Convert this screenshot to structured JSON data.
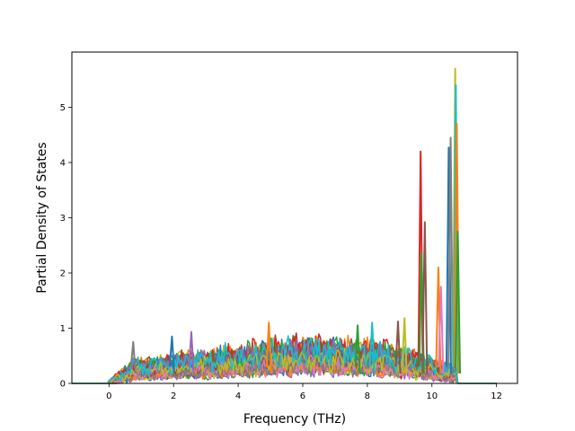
{
  "chart_data": {
    "type": "line",
    "xlabel": "Frequency (THz)",
    "ylabel": "Partial Density of States",
    "xlim": [
      -1.15,
      12.65
    ],
    "ylim": [
      0,
      6.0
    ],
    "x_ticks": [
      0,
      2,
      4,
      6,
      8,
      10,
      12
    ],
    "y_ticks": [
      0,
      1,
      2,
      3,
      4,
      5
    ],
    "grid": false,
    "legend": "none",
    "series_colors": [
      "#1f77b4",
      "#ff7f0e",
      "#2ca02c",
      "#d62728",
      "#9467bd",
      "#8c564b",
      "#e377c2",
      "#7f7f7f",
      "#bcbd22",
      "#17becf"
    ],
    "series_count": 40,
    "curve_domain": [
      -1.15,
      12.0
    ],
    "nonzero_range": [
      0.0,
      10.8
    ],
    "peaks": [
      {
        "x": 0.75,
        "y": 0.75,
        "color": "#7f7f7f"
      },
      {
        "x": 1.95,
        "y": 0.85,
        "color": "#1f77b4"
      },
      {
        "x": 2.55,
        "y": 0.93,
        "color": "#9467bd"
      },
      {
        "x": 4.95,
        "y": 1.1,
        "color": "#ff7f0e"
      },
      {
        "x": 7.7,
        "y": 1.05,
        "color": "#2ca02c"
      },
      {
        "x": 8.15,
        "y": 1.1,
        "color": "#17becf"
      },
      {
        "x": 8.95,
        "y": 1.12,
        "color": "#8c564b"
      },
      {
        "x": 9.15,
        "y": 1.18,
        "color": "#bcbd22"
      },
      {
        "x": 9.65,
        "y": 4.2,
        "color": "#d62728"
      },
      {
        "x": 9.68,
        "y": 2.35,
        "color": "#2ca02c"
      },
      {
        "x": 9.78,
        "y": 2.92,
        "color": "#8c564b"
      },
      {
        "x": 10.2,
        "y": 2.1,
        "color": "#ff7f0e"
      },
      {
        "x": 10.28,
        "y": 1.75,
        "color": "#e377c2"
      },
      {
        "x": 10.52,
        "y": 4.27,
        "color": "#1f77b4"
      },
      {
        "x": 10.58,
        "y": 4.45,
        "color": "#7f7f7f"
      },
      {
        "x": 10.72,
        "y": 5.7,
        "color": "#bcbd22"
      },
      {
        "x": 10.74,
        "y": 5.4,
        "color": "#17becf"
      },
      {
        "x": 10.77,
        "y": 4.7,
        "color": "#ff7f0e"
      },
      {
        "x": 10.8,
        "y": 2.75,
        "color": "#2ca02c"
      }
    ]
  }
}
